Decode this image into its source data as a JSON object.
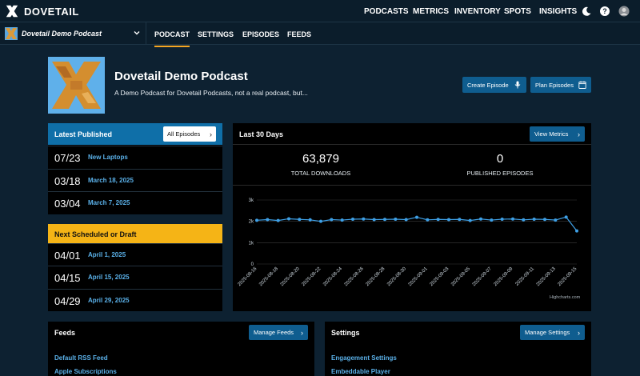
{
  "brand": {
    "name": "DOVETAIL"
  },
  "topnav": {
    "items": [
      "PODCASTS",
      "METRICS",
      "INVENTORY",
      "SPOTS",
      "INSIGHTS"
    ],
    "active": "PODCASTS",
    "icons": [
      "moon-icon",
      "help-icon",
      "avatar"
    ]
  },
  "subnav": {
    "podcast_name": "Dovetail Demo Podcast",
    "tabs": [
      "PODCAST",
      "SETTINGS",
      "EPISODES",
      "FEEDS"
    ],
    "active": "PODCAST"
  },
  "podcast": {
    "title": "Dovetail Demo Podcast",
    "description": "A Demo Podcast for Dovetail Podcasts, not a real podcast, but...",
    "create_episode_label": "Create Episode",
    "plan_episodes_label": "Plan Episodes"
  },
  "latest": {
    "title": "Latest Published",
    "button_label": "All Episodes",
    "rows": [
      {
        "date": "07/23",
        "title": "New Laptops"
      },
      {
        "date": "03/18",
        "title": "March 18, 2025"
      },
      {
        "date": "03/04",
        "title": "March 7, 2025"
      }
    ]
  },
  "scheduled": {
    "title": "Next Scheduled or Draft",
    "rows": [
      {
        "date": "04/01",
        "title": "April 1, 2025"
      },
      {
        "date": "04/15",
        "title": "April 15, 2025"
      },
      {
        "date": "04/29",
        "title": "April 29, 2025"
      }
    ]
  },
  "last30": {
    "title": "Last 30 Days",
    "button_label": "View Metrics",
    "downloads_value": "63,879",
    "downloads_label": "TOTAL DOWNLOADS",
    "episodes_value": "0",
    "episodes_label": "PUBLISHED EPISODES",
    "credit": "Highcharts.com"
  },
  "chart_data": {
    "type": "line",
    "x": [
      "2025-08-16",
      "2025-08-17",
      "2025-08-18",
      "2025-08-19",
      "2025-08-20",
      "2025-08-21",
      "2025-08-22",
      "2025-08-23",
      "2025-08-24",
      "2025-08-25",
      "2025-08-26",
      "2025-08-27",
      "2025-08-28",
      "2025-08-29",
      "2025-08-30",
      "2025-08-31",
      "2025-09-01",
      "2025-09-02",
      "2025-09-03",
      "2025-09-04",
      "2025-09-05",
      "2025-09-06",
      "2025-09-07",
      "2025-09-08",
      "2025-09-09",
      "2025-09-10",
      "2025-09-11",
      "2025-09-12",
      "2025-09-13",
      "2025-09-14",
      "2025-09-15"
    ],
    "x_tick_labels": [
      "2025-08-16",
      "2025-08-18",
      "2025-08-20",
      "2025-08-22",
      "2025-08-24",
      "2025-08-26",
      "2025-08-28",
      "2025-08-30",
      "2025-09-01",
      "2025-09-03",
      "2025-09-05",
      "2025-09-07",
      "2025-09-09",
      "2025-09-11",
      "2025-09-13",
      "2025-09-15"
    ],
    "series": [
      {
        "values": [
          2050,
          2080,
          2040,
          2120,
          2090,
          2070,
          2000,
          2080,
          2060,
          2100,
          2110,
          2080,
          2090,
          2100,
          2080,
          2190,
          2070,
          2090,
          2080,
          2090,
          2040,
          2110,
          2060,
          2100,
          2110,
          2070,
          2100,
          2090,
          2060,
          2200,
          1550
        ]
      }
    ],
    "y_ticks": [
      "0",
      "1k",
      "2k",
      "3k"
    ],
    "ylim": [
      0,
      3000
    ],
    "color": "#3ea0e6",
    "grid": true
  },
  "feeds": {
    "title": "Feeds",
    "button_label": "Manage Feeds",
    "links": [
      "Default RSS Feed",
      "Apple Subscriptions"
    ]
  },
  "settings": {
    "title": "Settings",
    "button_label": "Manage Settings",
    "links": [
      "Engagement Settings",
      "Embeddable Player"
    ]
  },
  "colors": {
    "background": "#0d2131",
    "nav": "#0b1d2b",
    "accent": "#f5a623",
    "button": "#0f5d8f",
    "link": "#5ab0e8",
    "latest_header": "#0f6fa8",
    "scheduled_header": "#f5b416"
  }
}
